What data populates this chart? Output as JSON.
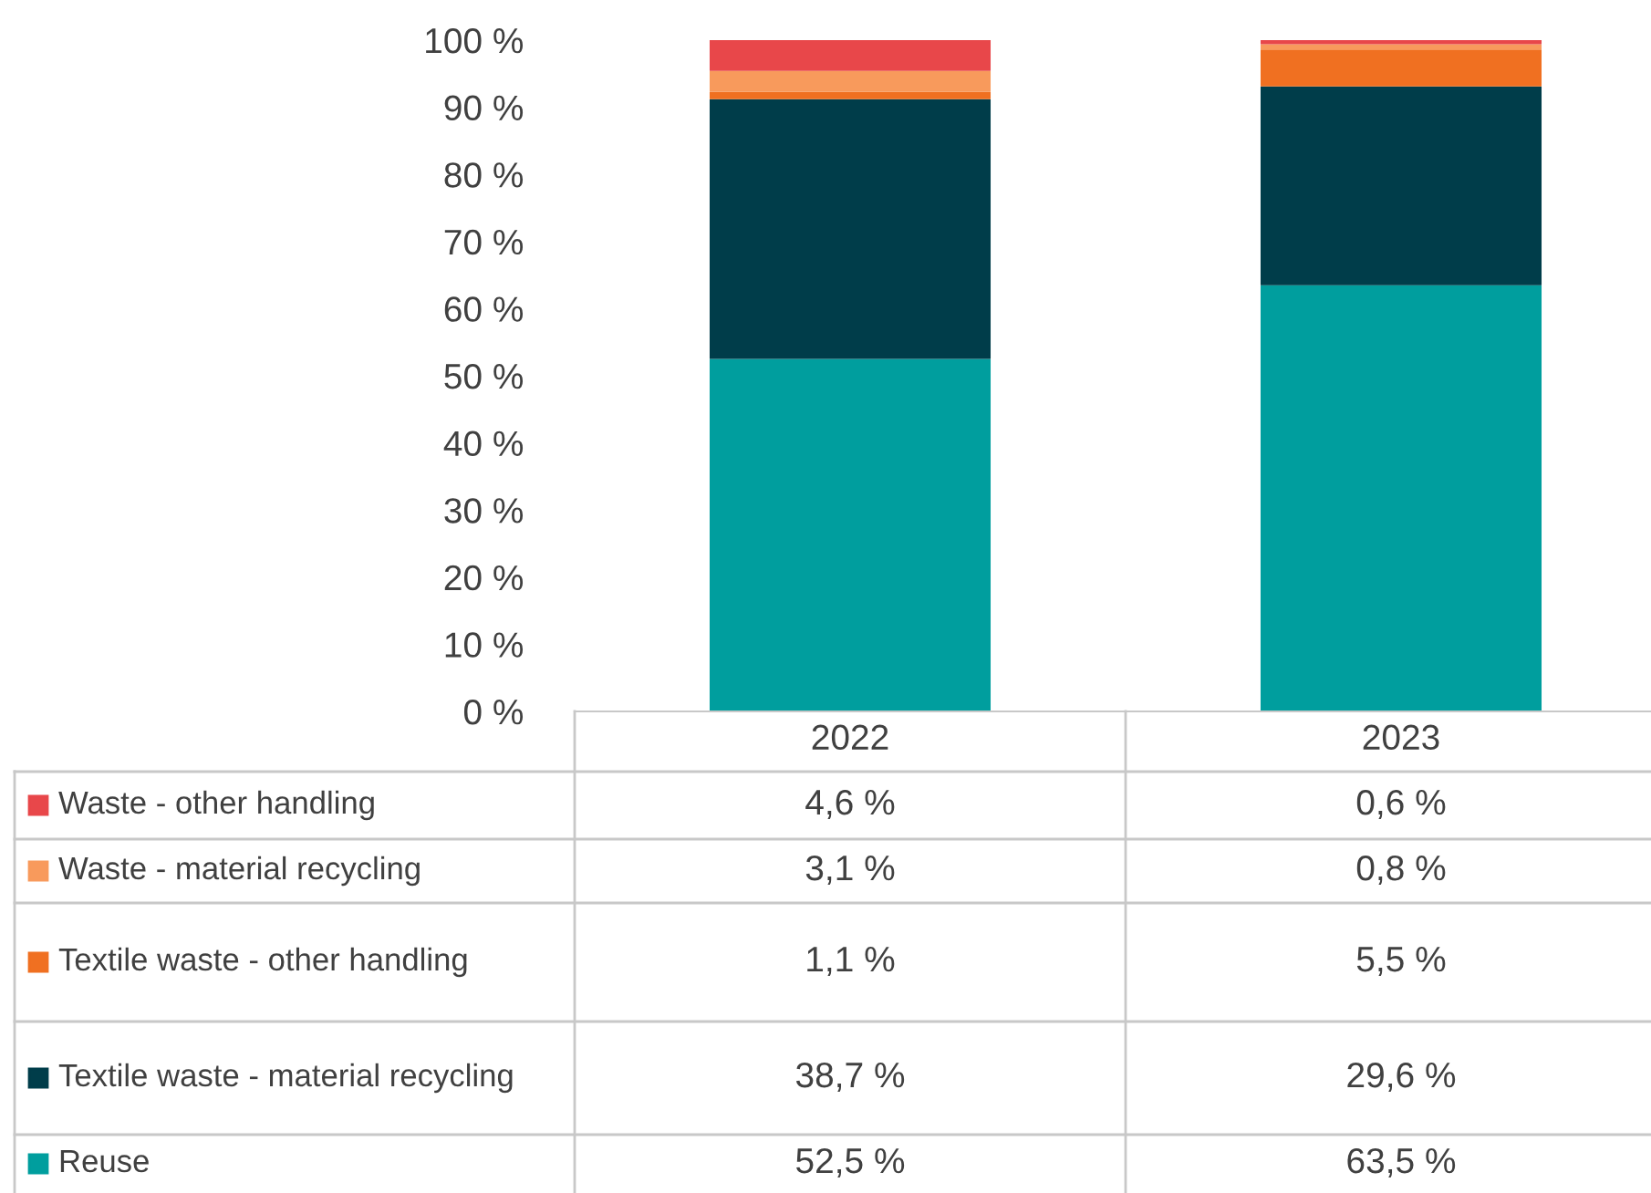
{
  "chart_data": {
    "type": "bar",
    "stacked": true,
    "categories": [
      "2022",
      "2023"
    ],
    "series": [
      {
        "name": "Reuse",
        "color": "#009e9e",
        "values": [
          52.5,
          63.5
        ],
        "value_labels": [
          "52,5 %",
          "63,5 %"
        ]
      },
      {
        "name": "Textile waste - material recycling",
        "color": "#003d4a",
        "values": [
          38.7,
          29.6
        ],
        "value_labels": [
          "38,7 %",
          "29,6 %"
        ]
      },
      {
        "name": "Textile waste - other handling",
        "color": "#f07021",
        "values": [
          1.1,
          5.5
        ],
        "value_labels": [
          "1,1 %",
          "5,5 %"
        ]
      },
      {
        "name": "Waste - material recycling",
        "color": "#f89a5c",
        "values": [
          3.1,
          0.8
        ],
        "value_labels": [
          "3,1 %",
          "0,8 %"
        ]
      },
      {
        "name": "Waste - other handling",
        "color": "#e8474a",
        "values": [
          4.6,
          0.6
        ],
        "value_labels": [
          "4,6 %",
          "0,6 %"
        ]
      }
    ],
    "ylim": [
      0,
      100
    ],
    "yticks": [
      {
        "value": 0,
        "label": "0 %"
      },
      {
        "value": 10,
        "label": "10 %"
      },
      {
        "value": 20,
        "label": "20 %"
      },
      {
        "value": 30,
        "label": "30 %"
      },
      {
        "value": 40,
        "label": "40 %"
      },
      {
        "value": 50,
        "label": "50 %"
      },
      {
        "value": 60,
        "label": "60 %"
      },
      {
        "value": 70,
        "label": "70 %"
      },
      {
        "value": 80,
        "label": "80 %"
      },
      {
        "value": 90,
        "label": "90 %"
      },
      {
        "value": 100,
        "label": "100 %"
      }
    ],
    "legend": "bottom"
  }
}
